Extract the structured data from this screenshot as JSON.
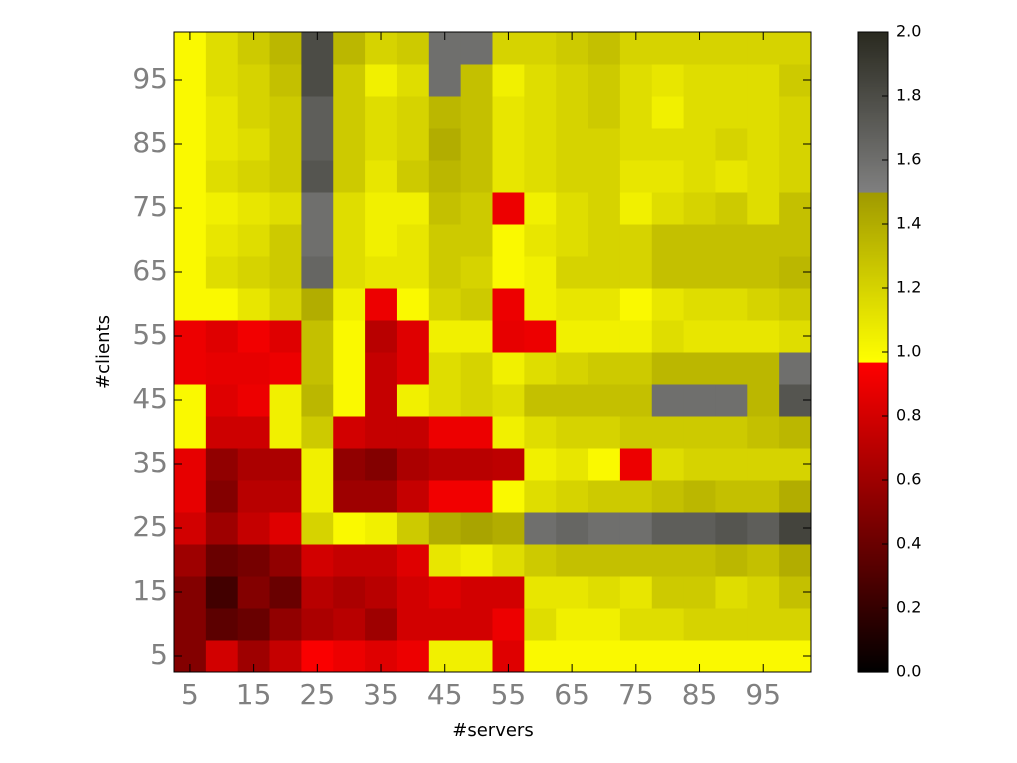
{
  "chart_data": {
    "type": "heatmap",
    "xlabel": "#servers",
    "ylabel": "#clients",
    "x": [
      5,
      10,
      15,
      20,
      25,
      30,
      35,
      40,
      45,
      50,
      55,
      60,
      65,
      70,
      75,
      80,
      85,
      90,
      95,
      100
    ],
    "y": [
      5,
      10,
      15,
      20,
      25,
      30,
      35,
      40,
      45,
      50,
      55,
      60,
      65,
      70,
      75,
      80,
      85,
      90,
      95,
      100
    ],
    "values": [
      [
        0.5,
        0.8,
        0.6,
        0.75,
        0.95,
        0.9,
        0.85,
        0.9,
        1.05,
        1.05,
        0.85,
        1.0,
        1.0,
        1.0,
        1.0,
        1.0,
        1.0,
        1.0,
        1.0,
        1.0
      ],
      [
        0.5,
        0.35,
        0.4,
        0.55,
        0.65,
        0.7,
        0.6,
        0.8,
        0.8,
        0.8,
        0.9,
        1.15,
        1.05,
        1.05,
        1.15,
        1.15,
        1.2,
        1.2,
        1.2,
        1.2
      ],
      [
        0.5,
        0.25,
        0.5,
        0.4,
        0.7,
        0.65,
        0.7,
        0.8,
        0.85,
        0.8,
        0.8,
        1.1,
        1.1,
        1.15,
        1.1,
        1.25,
        1.25,
        1.15,
        1.2,
        1.3
      ],
      [
        0.6,
        0.4,
        0.45,
        0.55,
        0.8,
        0.75,
        0.75,
        0.85,
        1.1,
        1.05,
        1.15,
        1.25,
        1.3,
        1.3,
        1.3,
        1.3,
        1.3,
        1.35,
        1.3,
        1.4
      ],
      [
        0.8,
        0.6,
        0.75,
        0.85,
        1.2,
        1.0,
        1.05,
        1.25,
        1.4,
        1.45,
        1.4,
        1.6,
        1.65,
        1.6,
        1.6,
        1.7,
        1.7,
        1.75,
        1.7,
        1.85
      ],
      [
        0.88,
        0.5,
        0.7,
        0.7,
        1.05,
        0.6,
        0.6,
        0.75,
        0.92,
        0.92,
        1.0,
        1.15,
        1.2,
        1.25,
        1.25,
        1.3,
        1.35,
        1.3,
        1.3,
        1.4
      ],
      [
        0.88,
        0.55,
        0.65,
        0.65,
        1.05,
        0.55,
        0.5,
        0.65,
        0.7,
        0.7,
        0.72,
        1.05,
        1.1,
        1.0,
        0.9,
        1.15,
        1.2,
        1.2,
        1.2,
        1.2
      ],
      [
        1.0,
        0.78,
        0.78,
        1.05,
        1.25,
        0.8,
        0.75,
        0.75,
        0.9,
        0.9,
        1.05,
        1.15,
        1.2,
        1.2,
        1.25,
        1.25,
        1.25,
        1.25,
        1.3,
        1.35
      ],
      [
        1.0,
        0.85,
        0.9,
        1.05,
        1.35,
        1.0,
        0.75,
        1.05,
        1.15,
        1.2,
        1.15,
        1.3,
        1.3,
        1.3,
        1.3,
        1.6,
        1.6,
        1.6,
        1.35,
        1.75
      ],
      [
        0.9,
        0.88,
        0.88,
        0.9,
        1.3,
        1.0,
        0.75,
        0.85,
        1.15,
        1.2,
        1.05,
        1.15,
        1.2,
        1.25,
        1.25,
        1.35,
        1.35,
        1.35,
        1.35,
        1.6
      ],
      [
        0.9,
        0.85,
        0.92,
        0.85,
        1.3,
        1.0,
        0.7,
        0.85,
        1.05,
        1.05,
        0.88,
        0.9,
        1.05,
        1.05,
        1.05,
        1.15,
        1.1,
        1.1,
        1.1,
        1.15
      ],
      [
        1.0,
        1.0,
        1.1,
        1.2,
        1.4,
        1.05,
        0.9,
        1.0,
        1.2,
        1.25,
        0.9,
        1.05,
        1.1,
        1.1,
        1.0,
        1.1,
        1.15,
        1.15,
        1.2,
        1.25
      ],
      [
        1.0,
        1.15,
        1.2,
        1.25,
        1.65,
        1.15,
        1.1,
        1.1,
        1.25,
        1.2,
        1.0,
        1.05,
        1.2,
        1.2,
        1.2,
        1.3,
        1.3,
        1.3,
        1.3,
        1.35
      ],
      [
        1.0,
        1.1,
        1.15,
        1.25,
        1.6,
        1.15,
        1.05,
        1.1,
        1.25,
        1.25,
        1.0,
        1.1,
        1.15,
        1.2,
        1.2,
        1.3,
        1.3,
        1.3,
        1.3,
        1.3
      ],
      [
        1.0,
        1.05,
        1.1,
        1.15,
        1.6,
        1.15,
        1.05,
        1.05,
        1.3,
        1.25,
        0.9,
        1.05,
        1.15,
        1.2,
        1.05,
        1.15,
        1.2,
        1.25,
        1.15,
        1.3
      ],
      [
        1.0,
        1.15,
        1.2,
        1.25,
        1.75,
        1.25,
        1.1,
        1.25,
        1.35,
        1.3,
        1.1,
        1.15,
        1.2,
        1.2,
        1.1,
        1.1,
        1.15,
        1.1,
        1.15,
        1.2
      ],
      [
        1.0,
        1.1,
        1.15,
        1.25,
        1.7,
        1.25,
        1.15,
        1.2,
        1.4,
        1.3,
        1.1,
        1.15,
        1.2,
        1.2,
        1.15,
        1.15,
        1.15,
        1.2,
        1.15,
        1.2
      ],
      [
        1.0,
        1.1,
        1.2,
        1.25,
        1.7,
        1.25,
        1.15,
        1.2,
        1.35,
        1.3,
        1.1,
        1.15,
        1.2,
        1.25,
        1.15,
        1.05,
        1.15,
        1.15,
        1.15,
        1.2
      ],
      [
        1.0,
        1.15,
        1.2,
        1.3,
        1.8,
        1.25,
        1.05,
        1.15,
        1.6,
        1.3,
        1.05,
        1.15,
        1.2,
        1.25,
        1.15,
        1.1,
        1.15,
        1.15,
        1.15,
        1.25
      ],
      [
        1.0,
        1.15,
        1.25,
        1.35,
        1.8,
        1.35,
        1.2,
        1.25,
        1.6,
        1.6,
        1.2,
        1.2,
        1.25,
        1.3,
        1.2,
        1.2,
        1.2,
        1.2,
        1.2,
        1.2
      ]
    ],
    "xlim": [
      2.5,
      102.5
    ],
    "ylim": [
      2.5,
      102.5
    ],
    "xticks": [
      5,
      15,
      25,
      35,
      45,
      55,
      65,
      75,
      85,
      95
    ],
    "yticks": [
      5,
      15,
      25,
      35,
      45,
      55,
      65,
      75,
      85,
      95
    ],
    "colorbar": {
      "lim": [
        0,
        2
      ],
      "ticks": [
        {
          "value": 0,
          "label": "0.0"
        },
        {
          "value": 0.2,
          "label": "0.2"
        },
        {
          "value": 0.4,
          "label": "0.4"
        },
        {
          "value": 0.6,
          "label": "0.6"
        },
        {
          "value": 0.8,
          "label": "0.8"
        },
        {
          "value": 1,
          "label": "1.0"
        },
        {
          "value": 1.2,
          "label": "1.2"
        },
        {
          "value": 1.4,
          "label": "1.4"
        },
        {
          "value": 1.6,
          "label": "1.6"
        },
        {
          "value": 1.8,
          "label": "1.8"
        },
        {
          "value": 2,
          "label": "2.0"
        }
      ],
      "segments": [
        {
          "from": 0,
          "to": 0.97,
          "colors": [
            "#000000",
            "#ff0000"
          ]
        },
        {
          "from": 0.97,
          "to": 1.5,
          "colors": [
            "#ffff00",
            "#a09a00"
          ]
        },
        {
          "from": 1.5,
          "to": 2,
          "colors": [
            "#808080",
            "#2a2a20"
          ]
        }
      ]
    }
  }
}
